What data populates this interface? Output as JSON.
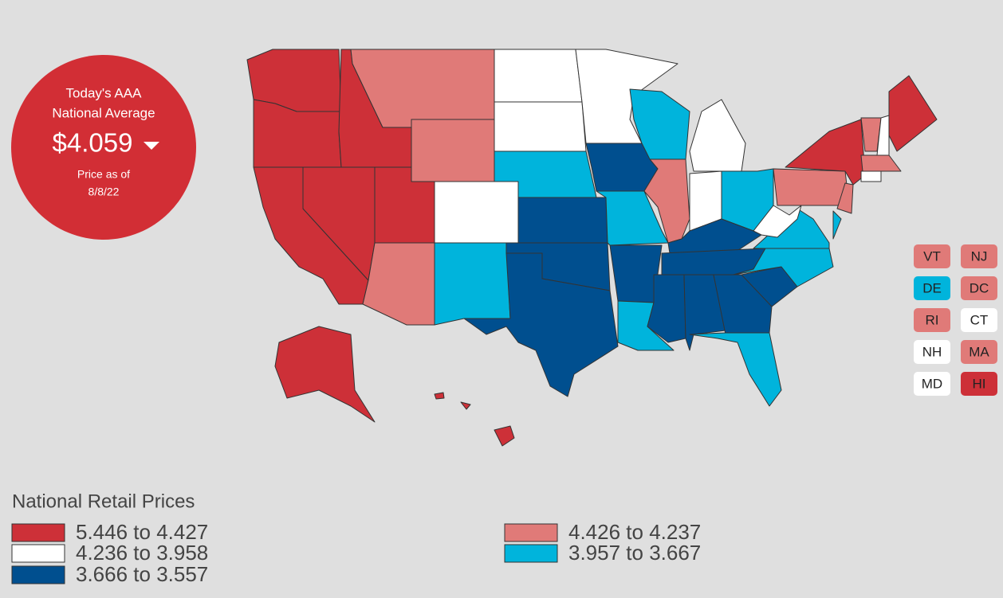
{
  "badge": {
    "title_lines": [
      "Today's AAA",
      "National Average"
    ],
    "price": "$4.059",
    "date_label": "Price as of",
    "date": "8/8/22"
  },
  "legend": {
    "title": "National Retail Prices",
    "items": [
      {
        "label": "5.446 to 4.427",
        "color": "#cd3038"
      },
      {
        "label": "4.426 to 4.237",
        "color": "#e07a78"
      },
      {
        "label": "4.236 to 3.958",
        "color": "#ffffff"
      },
      {
        "label": "3.957 to 3.667",
        "color": "#00b4dc"
      },
      {
        "label": "3.666 to 3.557",
        "color": "#004f8f"
      }
    ]
  },
  "small_states": [
    "VT",
    "NJ",
    "DE",
    "DC",
    "RI",
    "CT",
    "NH",
    "MA",
    "MD",
    "HI"
  ]
}
